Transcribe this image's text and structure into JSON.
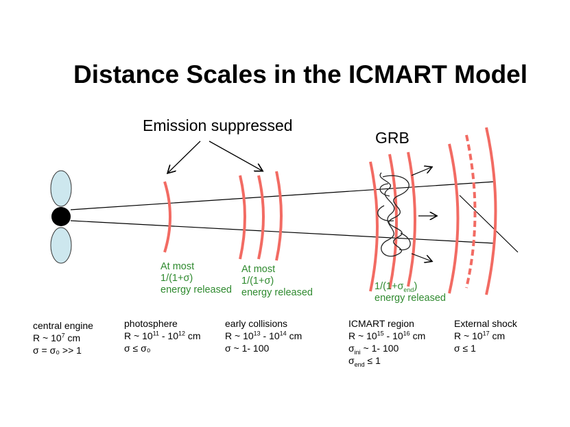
{
  "title": "Distance Scales in the ICMART Model",
  "annotations": {
    "emission_suppressed": "Emission suppressed",
    "grb": "GRB"
  },
  "energy_notes": {
    "photosphere": {
      "line1": "At most",
      "line2": "1/(1+σ)",
      "line3": "energy released"
    },
    "collisions": {
      "line1": "At most",
      "line2": "1/(1+σ)",
      "line3": "energy released"
    },
    "icmart": {
      "line1_pre": "1/(1+σ",
      "line1_sub": "end",
      "line1_post": ")",
      "line2": "energy released"
    }
  },
  "stages": [
    {
      "name": "central engine",
      "r_pre": "R ~ 10",
      "r_sup1": "7",
      "r_mid": "",
      "r_sup2": "",
      "r_post": " cm",
      "sigma": "σ = σ₀ >> 1"
    },
    {
      "name": "photosphere",
      "r_pre": "R ~ 10",
      "r_sup1": "11",
      "r_mid": " - 10",
      "r_sup2": "12",
      "r_post": " cm",
      "sigma": "σ ≤ σ₀"
    },
    {
      "name": "early collisions",
      "r_pre": "R ~ 10",
      "r_sup1": "13",
      "r_mid": " - 10",
      "r_sup2": "14",
      "r_post": " cm",
      "sigma": "σ ~ 1- 100"
    },
    {
      "name": "ICMART region",
      "r_pre": "R ~ 10",
      "r_sup1": "15",
      "r_mid": " - 10",
      "r_sup2": "16",
      "r_post": " cm",
      "sigma_pre": "σ",
      "sigma_sub": "ini",
      "sigma_post": " ~ 1- 100",
      "sigma2_pre": "σ",
      "sigma2_sub": "end",
      "sigma2_post": " ≤ 1"
    },
    {
      "name": "External shock",
      "r_pre": "R ~ 10",
      "r_sup1": "17",
      "r_mid": "",
      "r_sup2": "",
      "r_post": " cm",
      "sigma": "σ ≤ 1"
    }
  ],
  "colors": {
    "shell": "#f26b63",
    "engine_lobe": "#cde7ee",
    "engine_core": "#000000",
    "note_green": "#2f8a2f"
  }
}
